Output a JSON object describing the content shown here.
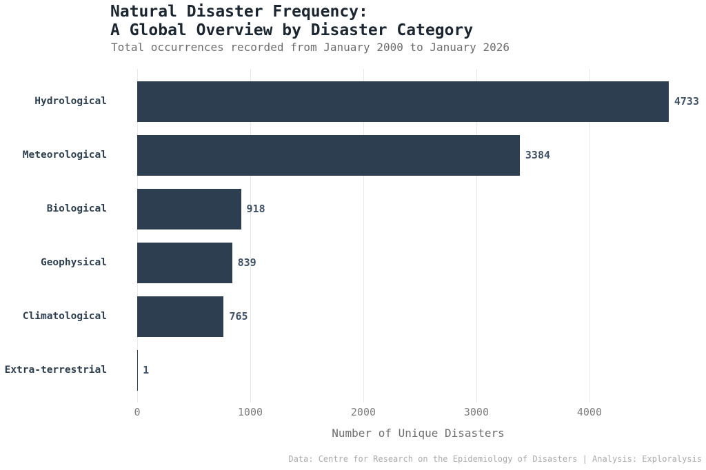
{
  "header": {
    "title": "Natural Disaster Frequency:\nA Global Overview by Disaster Category",
    "subtitle": "Total occurrences recorded from January 2000 to January 2026"
  },
  "chart_data": {
    "type": "bar",
    "orientation": "horizontal",
    "title": "Natural Disaster Frequency: A Global Overview by Disaster Category",
    "subtitle": "Total occurrences recorded from January 2000 to January 2026",
    "categories": [
      "Hydrological",
      "Meteorological",
      "Biological",
      "Geophysical",
      "Climatological",
      "Extra-terrestrial"
    ],
    "values": [
      4733,
      3384,
      918,
      839,
      765,
      1
    ],
    "xlabel": "Number of Unique Disasters",
    "ylabel": "",
    "xlim": [
      0,
      4970
    ],
    "xticks": [
      0,
      1000,
      2000,
      3000,
      4000
    ],
    "grid": true,
    "legend": false,
    "value_labels": true,
    "bar_color": "#2d3e50"
  },
  "footer": {
    "source": "Data: Centre for Research on the Epidemiology of Disasters | Analysis: Exploralysis"
  }
}
